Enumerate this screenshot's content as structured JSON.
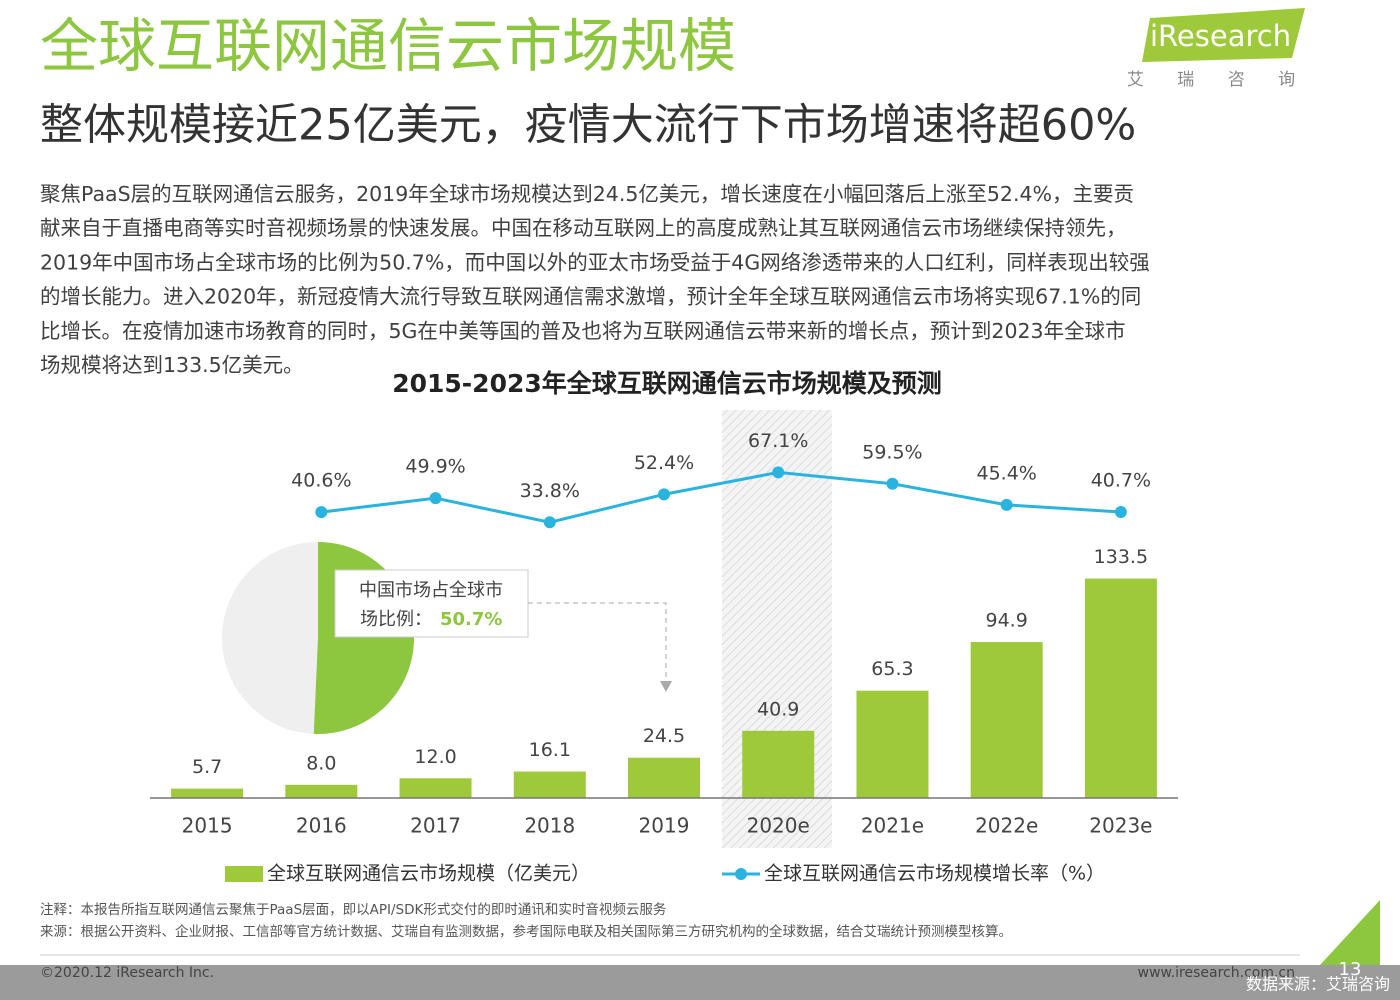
{
  "header": {
    "title": "全球互联网通信云市场规模",
    "subtitle": "整体规模接近25亿美元，疫情大流行下市场增速将超60%",
    "logo": "iResearch",
    "logo_cn": "艾 瑞 咨 询"
  },
  "body": [
    "聚焦PaaS层的互联网通信云服务，2019年全球市场规模达到24.5亿美元，增长速度在小幅回落后上涨至52.4%，主要贡",
    "献来自于直播电商等实时音视频场景的快速发展。中国在移动互联网上的高度成熟让其互联网通信云市场继续保持领先，",
    "2019年中国市场占全球市场的比例为50.7%，而中国以外的亚太市场受益于4G网络渗透带来的人口红利，同样表现出较强",
    "的增长能力。进入2020年，新冠疫情大流行导致互联网通信需求激增，预计全年全球互联网通信云市场将实现67.1%的同",
    "比增长。在疫情加速市场教育的同时，5G在中美等国的普及也将为互联网通信云带来新的增长点，预计到2023年全球市",
    "场规模将达到133.5亿美元。"
  ],
  "chart_data": [
    {
      "type": "bar",
      "title": "2015-2023年全球互联网通信云市场规模及预测",
      "categories": [
        "2015",
        "2016",
        "2017",
        "2018",
        "2019",
        "2020e",
        "2021e",
        "2022e",
        "2023e"
      ],
      "ylim": [
        0,
        230
      ],
      "y2lim": [
        -150,
        102
      ],
      "series": [
        {
          "name": "全球互联网通信云市场规模（亿美元）",
          "type": "bar",
          "color": "#9dc93b",
          "values": [
            5.7,
            8.0,
            12.0,
            16.1,
            24.5,
            40.9,
            65.3,
            94.9,
            133.5
          ],
          "value_labels": [
            "5.7",
            "8.0",
            "12.0",
            "16.1",
            "24.5",
            "40.9",
            "65.3",
            "94.9",
            "133.5"
          ]
        },
        {
          "name": "全球互联网通信云市场规模增长率（%）",
          "type": "line",
          "axis": "y2",
          "color": "#2bb3e0",
          "values": [
            null,
            40.6,
            49.9,
            33.8,
            52.4,
            67.1,
            59.5,
            45.4,
            40.7
          ],
          "value_labels": [
            null,
            "40.6%",
            "49.9%",
            "33.8%",
            "52.4%",
            "67.1%",
            "59.5%",
            "45.4%",
            "40.7%"
          ]
        }
      ]
    },
    {
      "type": "pie",
      "annotation": [
        "中国市场占全球市",
        "场比例："
      ],
      "values": [
        50.7
      ],
      "value_labels": [
        "50.7%"
      ],
      "colors": [
        "#8dc63f"
      ]
    }
  ],
  "notes": [
    "注释：本报告所指互联网通信云聚焦于PaaS层面，即以API/SDK形式交付的即时通讯和实时音视频云服务",
    "来源：根据公开资料、企业财报、工信部等官方统计数据、艾瑞自有监测数据，参考国际电联及相关国际第三方研究机构的全球数据，结合艾瑞统计预测模型核算。"
  ],
  "footer": {
    "copyright": "©2020.12 iResearch Inc.",
    "website": "www.iresearch.com.cn",
    "page": "13",
    "watermark": "数据来源：艾瑞咨询"
  }
}
